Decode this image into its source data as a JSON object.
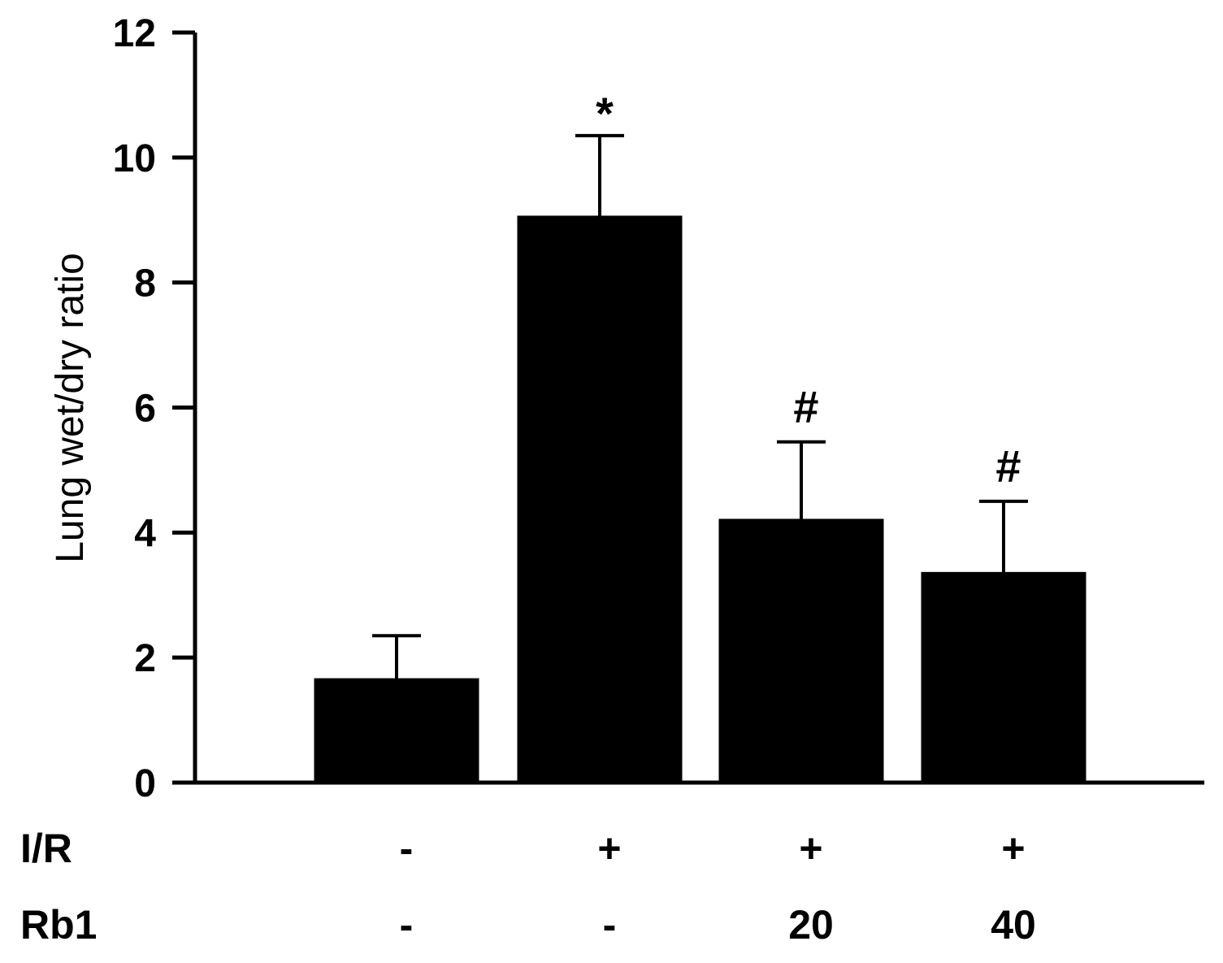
{
  "chart_data": {
    "type": "bar",
    "title": "",
    "xlabel": "",
    "ylabel": "Lung wet/dry ratio",
    "ylim": [
      0,
      12
    ],
    "yticks": [
      "0",
      "2",
      "4",
      "6",
      "8",
      "10",
      "12"
    ],
    "grid": false,
    "legend": "none",
    "bar_color": "#000000",
    "values": [
      1.65,
      9.05,
      4.2,
      3.35
    ],
    "errors": [
      0.7,
      1.3,
      1.25,
      1.15
    ],
    "annotations": [
      "",
      "*",
      "#",
      "#"
    ],
    "condition_rows": [
      {
        "label": "I/R",
        "values": [
          "-",
          "+",
          "+",
          "+"
        ]
      },
      {
        "label": "Rb1",
        "values": [
          "-",
          "-",
          "20",
          "40"
        ]
      }
    ]
  }
}
